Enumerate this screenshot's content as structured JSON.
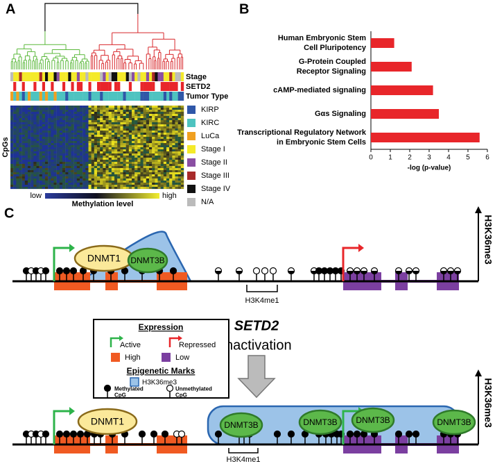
{
  "panel_labels": [
    "A",
    "B",
    "C"
  ],
  "panel_a": {
    "track_labels": [
      "Stage",
      "SETD2",
      "Tumor Type"
    ],
    "y_label": "CpGs",
    "legend": [
      {
        "label": "KIRP",
        "color": "#2f57a8"
      },
      {
        "label": "KIRC",
        "color": "#4ec3c0"
      },
      {
        "label": "LuCa",
        "color": "#f0a020"
      },
      {
        "label": "Stage I",
        "color": "#f4ea2a"
      },
      {
        "label": "Stage II",
        "color": "#8a4fa3"
      },
      {
        "label": "Stage III",
        "color": "#a82a2a"
      },
      {
        "label": "Stage IV",
        "color": "#111111"
      },
      {
        "label": "N/A",
        "color": "#bbbbbb"
      }
    ],
    "colorbar": {
      "low": "low",
      "high": "high",
      "title": "Methylation level"
    }
  },
  "chart_data": {
    "type": "barh",
    "categories": [
      "Human Embryonic Stem\nCell Pluripotency",
      "G-Protein Coupled\nReceptor Signaling",
      "cAMP-mediated signaling",
      "Gαs Signaling",
      "Transcriptional Regulatory Network\nin Embryonic Stem Cells"
    ],
    "values": [
      1.2,
      2.1,
      3.2,
      3.5,
      5.6
    ],
    "color": "#e8262a",
    "xlim": [
      0,
      6
    ],
    "xticks": [
      0,
      1,
      2,
      3,
      4,
      5,
      6
    ],
    "x_label": "-log (p-value)"
  },
  "panel_c": {
    "top": {
      "mark": "H3K36me3",
      "enzymes": [
        "DNMT1",
        "DNMT3B"
      ],
      "region": "H3K4me1"
    },
    "bottom": {
      "mark": "H3K36me3",
      "enzymes": [
        "DNMT1",
        "DNMT3B",
        "DNMT3B",
        "DNMT3B",
        "DNMT3B"
      ],
      "region": "H3K4me1"
    },
    "middle": {
      "gene": "SETD2",
      "event": "Inactivation"
    },
    "legend": {
      "expression_title": "Expression",
      "active": "Active",
      "repressed": "Repressed",
      "high": "High",
      "low": "Low",
      "marks_title": "Epigenetic Marks",
      "mark": "H3K36me3",
      "methylated": "Methylated\nCpG",
      "unmethylated": "Unmethylated\nCpG"
    }
  }
}
